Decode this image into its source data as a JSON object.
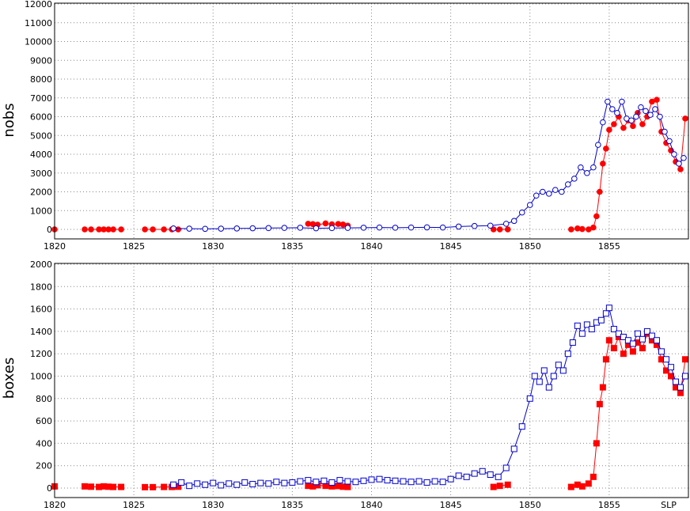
{
  "chart_data": [
    {
      "type": "scatter",
      "ylabel": "nobs",
      "xlim": [
        1820,
        1860
      ],
      "ylim": [
        0,
        12000
      ],
      "xticks": [
        1820,
        1825,
        1830,
        1835,
        1840,
        1845,
        1850,
        1855
      ],
      "yticks": [
        0,
        1000,
        2000,
        3000,
        4000,
        5000,
        6000,
        7000,
        8000,
        9000,
        10000,
        11000,
        12000
      ],
      "grid": true,
      "series": [
        {
          "color": "#ff0000",
          "marker": "filled-circle",
          "points": [
            [
              1820.0,
              0
            ],
            [
              1821.9,
              0
            ],
            [
              1822.3,
              0
            ],
            [
              1822.8,
              0
            ],
            [
              1823.1,
              0
            ],
            [
              1823.4,
              0
            ],
            [
              1823.7,
              0
            ],
            [
              1824.2,
              0
            ],
            [
              1825.7,
              0
            ],
            [
              1826.2,
              0
            ],
            [
              1826.9,
              0
            ],
            [
              1827.4,
              0
            ],
            [
              1827.8,
              0
            ],
            [
              1836.0,
              300
            ],
            [
              1836.3,
              280
            ],
            [
              1836.6,
              250
            ],
            [
              1837.1,
              320
            ],
            [
              1837.5,
              270
            ],
            [
              1837.9,
              290
            ],
            [
              1838.2,
              260
            ],
            [
              1838.5,
              200
            ],
            [
              1847.7,
              0
            ],
            [
              1848.1,
              0
            ],
            [
              1848.6,
              0
            ],
            [
              1852.6,
              0
            ],
            [
              1853.0,
              50
            ],
            [
              1853.3,
              20
            ],
            [
              1853.7,
              0
            ],
            [
              1854.0,
              100
            ],
            [
              1854.2,
              700
            ],
            [
              1854.4,
              2000
            ],
            [
              1854.6,
              3500
            ],
            [
              1854.8,
              4300
            ],
            [
              1855.0,
              5300
            ],
            [
              1855.3,
              5600
            ],
            [
              1855.6,
              6000
            ],
            [
              1855.9,
              5400
            ],
            [
              1856.2,
              5800
            ],
            [
              1856.5,
              5500
            ],
            [
              1856.8,
              6200
            ],
            [
              1857.1,
              5600
            ],
            [
              1857.4,
              6000
            ],
            [
              1857.7,
              6800
            ],
            [
              1858.0,
              6900
            ],
            [
              1858.3,
              5200
            ],
            [
              1858.6,
              4600
            ],
            [
              1858.9,
              4200
            ],
            [
              1859.2,
              3600
            ],
            [
              1859.5,
              3200
            ],
            [
              1859.8,
              5900
            ]
          ]
        },
        {
          "color": "#0000cc",
          "marker": "open-circle",
          "points": [
            [
              1827.5,
              50
            ],
            [
              1828.5,
              40
            ],
            [
              1829.5,
              30
            ],
            [
              1830.5,
              40
            ],
            [
              1831.5,
              50
            ],
            [
              1832.5,
              60
            ],
            [
              1833.5,
              70
            ],
            [
              1834.5,
              80
            ],
            [
              1835.5,
              90
            ],
            [
              1836.5,
              60
            ],
            [
              1837.5,
              70
            ],
            [
              1838.5,
              80
            ],
            [
              1839.5,
              90
            ],
            [
              1840.5,
              100
            ],
            [
              1841.5,
              90
            ],
            [
              1842.5,
              100
            ],
            [
              1843.5,
              110
            ],
            [
              1844.5,
              100
            ],
            [
              1845.5,
              150
            ],
            [
              1846.5,
              180
            ],
            [
              1847.5,
              200
            ],
            [
              1848.5,
              300
            ],
            [
              1849.0,
              450
            ],
            [
              1849.5,
              900
            ],
            [
              1850.0,
              1300
            ],
            [
              1850.4,
              1800
            ],
            [
              1850.8,
              2000
            ],
            [
              1851.2,
              1900
            ],
            [
              1851.6,
              2100
            ],
            [
              1852.0,
              2000
            ],
            [
              1852.4,
              2400
            ],
            [
              1852.8,
              2700
            ],
            [
              1853.2,
              3300
            ],
            [
              1853.6,
              3000
            ],
            [
              1854.0,
              3300
            ],
            [
              1854.3,
              4500
            ],
            [
              1854.6,
              5700
            ],
            [
              1854.9,
              6800
            ],
            [
              1855.2,
              6400
            ],
            [
              1855.5,
              6200
            ],
            [
              1855.8,
              6800
            ],
            [
              1856.1,
              5900
            ],
            [
              1856.4,
              5800
            ],
            [
              1856.7,
              6000
            ],
            [
              1857.0,
              6500
            ],
            [
              1857.3,
              6300
            ],
            [
              1857.6,
              6100
            ],
            [
              1857.9,
              6400
            ],
            [
              1858.2,
              6000
            ],
            [
              1858.5,
              5200
            ],
            [
              1858.8,
              4700
            ],
            [
              1859.1,
              4000
            ],
            [
              1859.4,
              3500
            ],
            [
              1859.7,
              3800
            ]
          ]
        }
      ]
    },
    {
      "type": "scatter",
      "ylabel": "boxes",
      "xlim": [
        1820,
        1860
      ],
      "ylim": [
        0,
        2000
      ],
      "xticks": [
        1820,
        1825,
        1830,
        1835,
        1840,
        1845,
        1850,
        1855
      ],
      "yticks": [
        0,
        200,
        400,
        600,
        800,
        1000,
        1200,
        1400,
        1600,
        1800,
        2000
      ],
      "grid": true,
      "annotation": "SLP",
      "series": [
        {
          "color": "#ff0000",
          "marker": "filled-square",
          "points": [
            [
              1820.0,
              15
            ],
            [
              1821.9,
              15
            ],
            [
              1822.3,
              12
            ],
            [
              1822.8,
              10
            ],
            [
              1823.1,
              15
            ],
            [
              1823.4,
              12
            ],
            [
              1823.7,
              10
            ],
            [
              1824.2,
              10
            ],
            [
              1825.7,
              8
            ],
            [
              1826.2,
              8
            ],
            [
              1826.9,
              10
            ],
            [
              1827.4,
              10
            ],
            [
              1827.8,
              12
            ],
            [
              1836.0,
              20
            ],
            [
              1836.3,
              15
            ],
            [
              1836.6,
              25
            ],
            [
              1837.1,
              20
            ],
            [
              1837.5,
              15
            ],
            [
              1837.9,
              18
            ],
            [
              1838.2,
              12
            ],
            [
              1838.5,
              10
            ],
            [
              1847.7,
              10
            ],
            [
              1848.1,
              20
            ],
            [
              1848.6,
              30
            ],
            [
              1852.6,
              10
            ],
            [
              1853.0,
              30
            ],
            [
              1853.3,
              15
            ],
            [
              1853.7,
              40
            ],
            [
              1854.0,
              100
            ],
            [
              1854.2,
              400
            ],
            [
              1854.4,
              750
            ],
            [
              1854.6,
              900
            ],
            [
              1854.8,
              1150
            ],
            [
              1855.0,
              1320
            ],
            [
              1855.3,
              1250
            ],
            [
              1855.6,
              1350
            ],
            [
              1855.9,
              1200
            ],
            [
              1856.2,
              1280
            ],
            [
              1856.5,
              1220
            ],
            [
              1856.8,
              1300
            ],
            [
              1857.1,
              1250
            ],
            [
              1857.4,
              1380
            ],
            [
              1857.7,
              1320
            ],
            [
              1858.0,
              1280
            ],
            [
              1858.3,
              1150
            ],
            [
              1858.6,
              1050
            ],
            [
              1858.9,
              1000
            ],
            [
              1859.2,
              900
            ],
            [
              1859.5,
              850
            ],
            [
              1859.8,
              1150
            ]
          ]
        },
        {
          "color": "#0000cc",
          "marker": "open-square",
          "points": [
            [
              1827.5,
              30
            ],
            [
              1828.0,
              50
            ],
            [
              1828.5,
              20
            ],
            [
              1829.0,
              40
            ],
            [
              1829.5,
              30
            ],
            [
              1830.0,
              45
            ],
            [
              1830.5,
              25
            ],
            [
              1831.0,
              40
            ],
            [
              1831.5,
              30
            ],
            [
              1832.0,
              50
            ],
            [
              1832.5,
              35
            ],
            [
              1833.0,
              45
            ],
            [
              1833.5,
              40
            ],
            [
              1834.0,
              55
            ],
            [
              1834.5,
              45
            ],
            [
              1835.0,
              50
            ],
            [
              1835.5,
              60
            ],
            [
              1836.0,
              70
            ],
            [
              1836.5,
              55
            ],
            [
              1837.0,
              65
            ],
            [
              1837.5,
              50
            ],
            [
              1838.0,
              70
            ],
            [
              1838.5,
              60
            ],
            [
              1839.0,
              55
            ],
            [
              1839.5,
              65
            ],
            [
              1840.0,
              75
            ],
            [
              1840.5,
              80
            ],
            [
              1841.0,
              70
            ],
            [
              1841.5,
              65
            ],
            [
              1842.0,
              60
            ],
            [
              1842.5,
              55
            ],
            [
              1843.0,
              60
            ],
            [
              1843.5,
              50
            ],
            [
              1844.0,
              60
            ],
            [
              1844.5,
              55
            ],
            [
              1845.0,
              80
            ],
            [
              1845.5,
              110
            ],
            [
              1846.0,
              100
            ],
            [
              1846.5,
              130
            ],
            [
              1847.0,
              150
            ],
            [
              1847.5,
              120
            ],
            [
              1848.0,
              100
            ],
            [
              1848.5,
              180
            ],
            [
              1849.0,
              350
            ],
            [
              1849.5,
              550
            ],
            [
              1850.0,
              800
            ],
            [
              1850.3,
              1000
            ],
            [
              1850.6,
              950
            ],
            [
              1850.9,
              1050
            ],
            [
              1851.2,
              900
            ],
            [
              1851.5,
              1000
            ],
            [
              1851.8,
              1100
            ],
            [
              1852.1,
              1050
            ],
            [
              1852.4,
              1200
            ],
            [
              1852.7,
              1300
            ],
            [
              1853.0,
              1450
            ],
            [
              1853.3,
              1380
            ],
            [
              1853.6,
              1460
            ],
            [
              1853.9,
              1420
            ],
            [
              1854.2,
              1480
            ],
            [
              1854.5,
              1500
            ],
            [
              1854.8,
              1560
            ],
            [
              1855.0,
              1610
            ],
            [
              1855.3,
              1420
            ],
            [
              1855.6,
              1380
            ],
            [
              1855.9,
              1350
            ],
            [
              1856.2,
              1320
            ],
            [
              1856.5,
              1290
            ],
            [
              1856.8,
              1380
            ],
            [
              1857.1,
              1330
            ],
            [
              1857.4,
              1400
            ],
            [
              1857.7,
              1360
            ],
            [
              1858.0,
              1320
            ],
            [
              1858.3,
              1220
            ],
            [
              1858.6,
              1150
            ],
            [
              1858.9,
              1080
            ],
            [
              1859.2,
              950
            ],
            [
              1859.5,
              900
            ],
            [
              1859.8,
              1000
            ]
          ]
        }
      ]
    }
  ]
}
